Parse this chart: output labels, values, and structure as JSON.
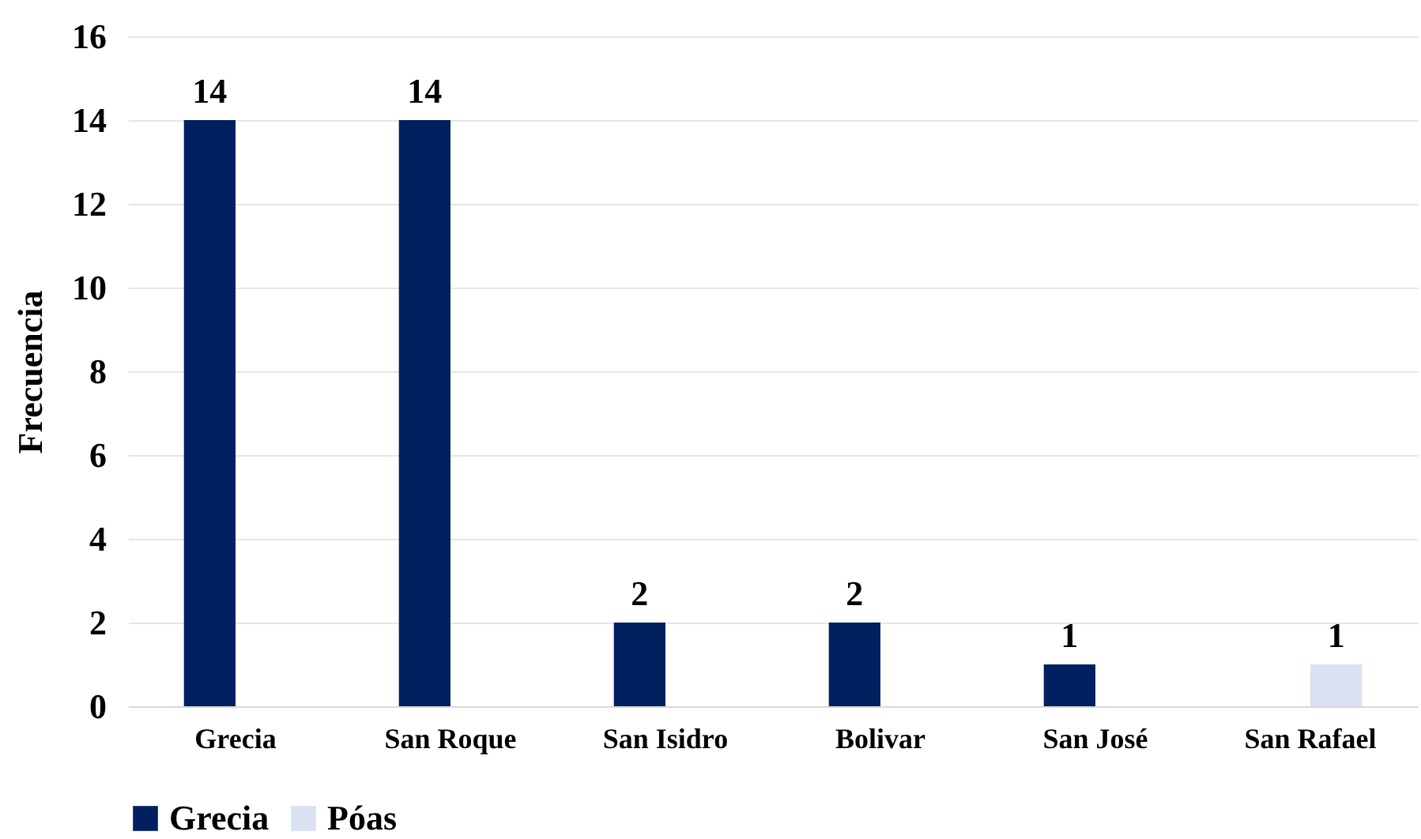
{
  "chart_data": {
    "type": "bar",
    "ylabel": "Frecuencia",
    "categories": [
      "Grecia",
      "San Roque",
      "San Isidro",
      "Bolivar",
      "San José",
      "San Rafael"
    ],
    "series": [
      {
        "name": "Grecia",
        "color": "#002060",
        "values": [
          14,
          14,
          2,
          2,
          1,
          null
        ]
      },
      {
        "name": "Póas",
        "color": "#d9e1f2",
        "values": [
          null,
          null,
          null,
          null,
          null,
          1
        ]
      }
    ],
    "ylim": [
      0,
      16
    ],
    "yticks": [
      0,
      2,
      4,
      6,
      8,
      10,
      12,
      14,
      16
    ],
    "grid": "y",
    "legend": "bottom",
    "data_labels": true
  }
}
